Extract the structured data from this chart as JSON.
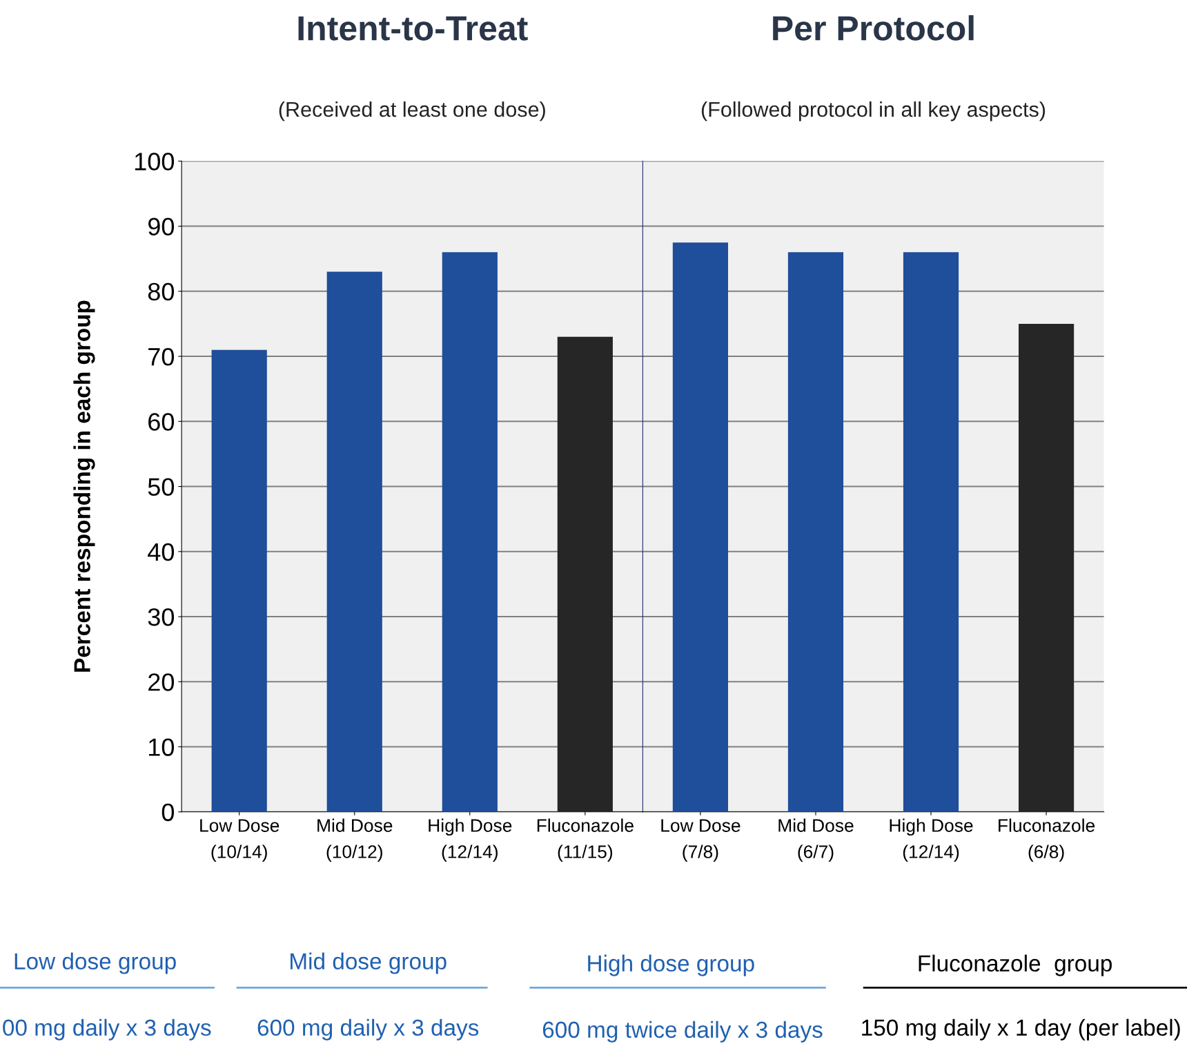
{
  "chart_data": [
    {
      "type": "bar",
      "title": "Intent-to-Treat",
      "subtitle": "(Received at least one dose)",
      "ylabel": "Percent responding in each group",
      "categories": [
        "Low Dose\n(10/14)",
        "Mid Dose\n(10/12)",
        "High Dose\n(12/14)",
        "Fluconazole\n(11/15)"
      ],
      "values": [
        71,
        83,
        86,
        73
      ],
      "colors": [
        "#1f4e9a",
        "#1f4e9a",
        "#1f4e9a",
        "#262626"
      ],
      "ylim": [
        0,
        100
      ],
      "yticks": [
        0,
        10,
        20,
        30,
        40,
        50,
        60,
        70,
        80,
        90,
        100
      ],
      "grid": "y",
      "annotations": [
        "Low dose group",
        "Mid dose group",
        "High dose group",
        "Fluconazole  group",
        "00 mg daily x 3 days",
        "600 mg daily x 3 days",
        "600 mg twice daily x 3 days",
        "150 mg daily x 1 day (per label)"
      ]
    },
    {
      "type": "bar",
      "title": "Per Protocol",
      "subtitle": "(Followed protocol in all key aspects)",
      "categories": [
        "Low Dose\n(7/8)",
        "Mid Dose\n(6/7)",
        "High Dose\n(12/14)",
        "Fluconazole\n(6/8)"
      ],
      "values": [
        87.5,
        86,
        86,
        75
      ],
      "colors": [
        "#1f4e9a",
        "#1f4e9a",
        "#1f4e9a",
        "#262626"
      ],
      "ylim": [
        0,
        100
      ],
      "yticks": [
        0,
        10,
        20,
        30,
        40,
        50,
        60,
        70,
        80,
        90,
        100
      ],
      "grid": "y",
      "tick_labels": "x"
    }
  ]
}
